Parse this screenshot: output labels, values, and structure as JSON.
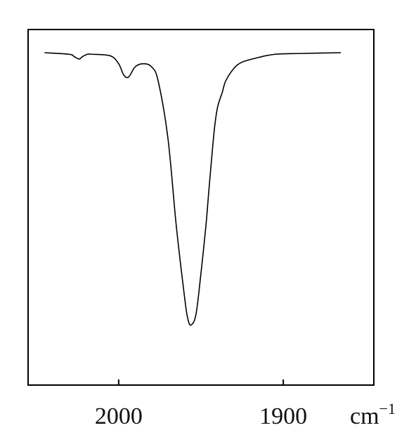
{
  "chart_data": {
    "type": "line",
    "title": "",
    "xlabel": "",
    "ylabel": "",
    "x_unit": "cm",
    "x_unit_exponent": "−1",
    "x_direction": "descending",
    "xlim": [
      2055,
      1845
    ],
    "x_ticks": [
      2000,
      1900
    ],
    "x_tick_labels": [
      "2000",
      "1900"
    ],
    "y_ticks_shown": false,
    "grid": false,
    "legend": "none",
    "line_color": "#000000",
    "series": [
      {
        "x": [
          2045,
          2030,
          2027,
          2024,
          2022,
          2019,
          2016,
          2005,
          2000,
          1997,
          1994,
          1990,
          1985,
          1980,
          1976,
          1970,
          1965,
          1960,
          1958,
          1956,
          1953,
          1950,
          1947,
          1945,
          1942,
          1940,
          1937,
          1935,
          1930,
          1925,
          1915,
          1905,
          1890,
          1865
        ],
        "y": [
          0.0,
          0.01,
          0.025,
          0.04,
          0.025,
          0.01,
          0.01,
          0.02,
          0.07,
          0.14,
          0.155,
          0.09,
          0.07,
          0.09,
          0.18,
          0.55,
          1.1,
          1.55,
          1.69,
          1.73,
          1.66,
          1.4,
          1.1,
          0.85,
          0.5,
          0.35,
          0.25,
          0.18,
          0.1,
          0.06,
          0.03,
          0.01,
          0.005,
          0.0
        ]
      }
    ]
  }
}
